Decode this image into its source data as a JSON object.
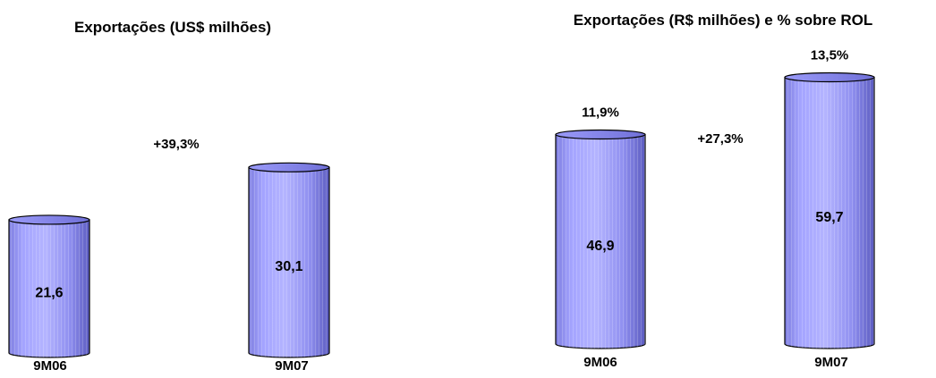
{
  "chart_data": [
    {
      "type": "bar",
      "style": "cylinder-3d",
      "title": "Exportações (US$ milhões)",
      "categories": [
        "9M06",
        "9M07"
      ],
      "values": [
        21.6,
        30.1
      ],
      "value_labels": [
        "21,6",
        "30,1"
      ],
      "top_labels": [],
      "growth_label": "+39,3%",
      "bar_color": "#9999ff",
      "grid": false,
      "legend": "none"
    },
    {
      "type": "bar",
      "style": "cylinder-3d",
      "title": "Exportações (R$ milhões) e % sobre ROL",
      "categories": [
        "9M06",
        "9M07"
      ],
      "values": [
        46.9,
        59.7
      ],
      "value_labels": [
        "46,9",
        "59,7"
      ],
      "top_labels": [
        "11,9%",
        "13,5%"
      ],
      "growth_label": "+27,3%",
      "bar_color": "#9999ff",
      "grid": false,
      "legend": "none"
    }
  ]
}
